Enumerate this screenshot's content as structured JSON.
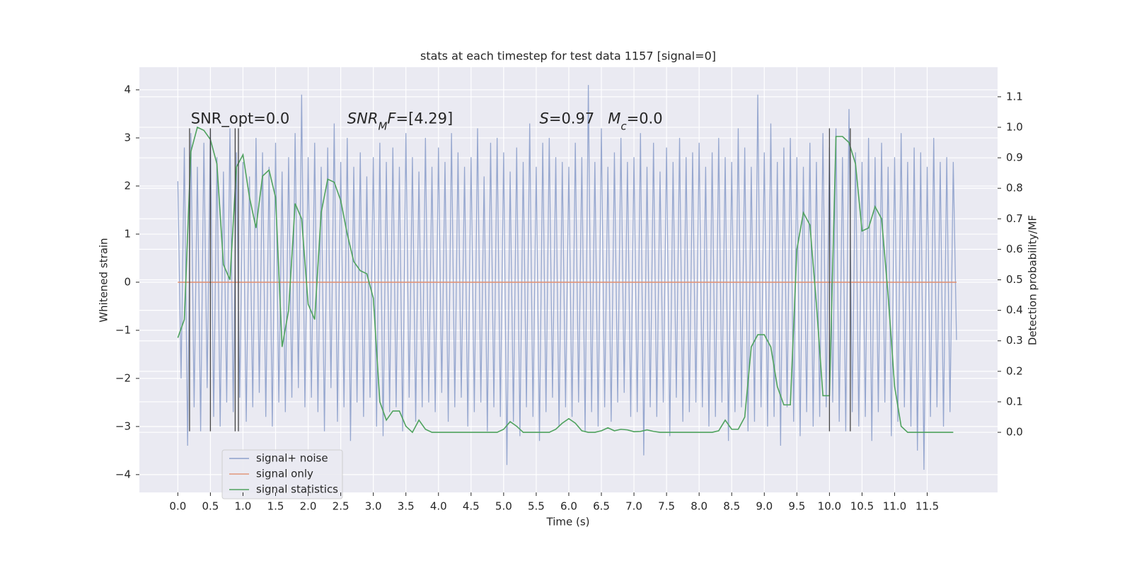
{
  "chart_data": {
    "type": "line",
    "title": "stats at each timestep for test data 1157 [signal=0]",
    "xlabel": "Time (s)",
    "ylabel": "Whitened strain",
    "y2label": "Detection probability/MF",
    "xlim": [
      -0.59,
      12.58
    ],
    "ylim": [
      -4.37,
      4.47
    ],
    "y2lim": [
      -0.197,
      1.197
    ],
    "xticks": [
      {
        "value": 0,
        "label": "0.0"
      },
      {
        "value": 0.5,
        "label": "0.5"
      },
      {
        "value": 1,
        "label": "1.0"
      },
      {
        "value": 1.5,
        "label": "1.5"
      },
      {
        "value": 2,
        "label": "2.0"
      },
      {
        "value": 2.5,
        "label": "2.5"
      },
      {
        "value": 3,
        "label": "3.0"
      },
      {
        "value": 3.5,
        "label": "3.5"
      },
      {
        "value": 4,
        "label": "4.0"
      },
      {
        "value": 4.5,
        "label": "4.5"
      },
      {
        "value": 5,
        "label": "5.0"
      },
      {
        "value": 5.5,
        "label": "5.5"
      },
      {
        "value": 6,
        "label": "6.0"
      },
      {
        "value": 6.5,
        "label": "6.5"
      },
      {
        "value": 7,
        "label": "7.0"
      },
      {
        "value": 7.5,
        "label": "7.5"
      },
      {
        "value": 8,
        "label": "8.0"
      },
      {
        "value": 8.5,
        "label": "8.5"
      },
      {
        "value": 9,
        "label": "9.0"
      },
      {
        "value": 9.5,
        "label": "9.5"
      },
      {
        "value": 10,
        "label": "10.0"
      },
      {
        "value": 10.5,
        "label": "10.5"
      },
      {
        "value": 11,
        "label": "11.0"
      },
      {
        "value": 11.5,
        "label": "11.5"
      }
    ],
    "yticks": [
      {
        "value": -4,
        "label": "−4"
      },
      {
        "value": -3,
        "label": "−3"
      },
      {
        "value": -2,
        "label": "−2"
      },
      {
        "value": -1,
        "label": "−1"
      },
      0,
      1,
      2,
      3,
      4
    ],
    "y2ticks": [
      {
        "value": 0,
        "label": "0.0"
      },
      {
        "value": 0.1,
        "label": "0.1"
      },
      {
        "value": 0.2,
        "label": "0.2"
      },
      {
        "value": 0.3,
        "label": "0.3"
      },
      {
        "value": 0.4,
        "label": "0.4"
      },
      {
        "value": 0.5,
        "label": "0.5"
      },
      {
        "value": 0.6,
        "label": "0.6"
      },
      {
        "value": 0.7,
        "label": "0.7"
      },
      {
        "value": 0.8,
        "label": "0.8"
      },
      {
        "value": 0.9,
        "label": "0.9"
      },
      {
        "value": 1,
        "label": "1.0"
      },
      {
        "value": 1.1,
        "label": "1.1"
      }
    ],
    "grid": true,
    "legend": "lower left",
    "series": [
      {
        "name": "signal+ noise",
        "color": "#8da0cb",
        "x": [
          0,
          0.05,
          0.1,
          0.15,
          0.2,
          0.25,
          0.3,
          0.35,
          0.4,
          0.45,
          0.5,
          0.55,
          0.6,
          0.65,
          0.7,
          0.75,
          0.8,
          0.85,
          0.9,
          0.95,
          1,
          1.05,
          1.1,
          1.15,
          1.2,
          1.25,
          1.3,
          1.35,
          1.4,
          1.45,
          1.5,
          1.55,
          1.6,
          1.65,
          1.7,
          1.75,
          1.8,
          1.85,
          1.9,
          1.95,
          2,
          2.05,
          2.1,
          2.15,
          2.2,
          2.25,
          2.3,
          2.35,
          2.4,
          2.45,
          2.5,
          2.55,
          2.6,
          2.65,
          2.7,
          2.75,
          2.8,
          2.85,
          2.9,
          2.95,
          3,
          3.05,
          3.1,
          3.15,
          3.2,
          3.25,
          3.3,
          3.35,
          3.4,
          3.45,
          3.5,
          3.55,
          3.6,
          3.65,
          3.7,
          3.75,
          3.8,
          3.85,
          3.9,
          3.95,
          4,
          4.05,
          4.1,
          4.15,
          4.2,
          4.25,
          4.3,
          4.35,
          4.4,
          4.45,
          4.5,
          4.55,
          4.6,
          4.65,
          4.7,
          4.75,
          4.8,
          4.85,
          4.9,
          4.95,
          5,
          5.05,
          5.1,
          5.15,
          5.2,
          5.25,
          5.3,
          5.35,
          5.4,
          5.45,
          5.5,
          5.55,
          5.6,
          5.65,
          5.7,
          5.75,
          5.8,
          5.85,
          5.9,
          5.95,
          6,
          6.05,
          6.1,
          6.15,
          6.2,
          6.25,
          6.3,
          6.35,
          6.4,
          6.45,
          6.5,
          6.55,
          6.6,
          6.65,
          6.7,
          6.75,
          6.8,
          6.85,
          6.9,
          6.95,
          7,
          7.05,
          7.1,
          7.15,
          7.2,
          7.25,
          7.3,
          7.35,
          7.4,
          7.45,
          7.5,
          7.55,
          7.6,
          7.65,
          7.7,
          7.75,
          7.8,
          7.85,
          7.9,
          7.95,
          8,
          8.05,
          8.1,
          8.15,
          8.2,
          8.25,
          8.3,
          8.35,
          8.4,
          8.45,
          8.5,
          8.55,
          8.6,
          8.65,
          8.7,
          8.75,
          8.8,
          8.85,
          8.9,
          8.95,
          9,
          9.05,
          9.1,
          9.15,
          9.2,
          9.25,
          9.3,
          9.35,
          9.4,
          9.45,
          9.5,
          9.55,
          9.6,
          9.65,
          9.7,
          9.75,
          9.8,
          9.85,
          9.9,
          9.95,
          10,
          10.05,
          10.1,
          10.15,
          10.2,
          10.25,
          10.3,
          10.35,
          10.4,
          10.45,
          10.5,
          10.55,
          10.6,
          10.65,
          10.7,
          10.75,
          10.8,
          10.85,
          10.9,
          10.95,
          11,
          11.05,
          11.1,
          11.15,
          11.2,
          11.25,
          11.3,
          11.35,
          11.4,
          11.45,
          11.5,
          11.55,
          11.6,
          11.65,
          11.7,
          11.75,
          11.8,
          11.85,
          11.9,
          11.95
        ],
        "values": [
          2.1,
          -2.0,
          2.8,
          -3.4,
          3.1,
          -2.6,
          2.4,
          -3.1,
          2.9,
          -2.2,
          3.2,
          -2.8,
          2.6,
          -3.0,
          2.3,
          -2.5,
          3.2,
          -2.7,
          2.7,
          -2.4,
          2.5,
          -2.9,
          2.2,
          -2.6,
          3.0,
          -2.3,
          2.7,
          -2.8,
          2.4,
          -3.0,
          2.9,
          -2.5,
          2.3,
          -2.7,
          2.6,
          -2.4,
          3.1,
          -2.2,
          3.9,
          -2.6,
          2.6,
          -2.4,
          2.9,
          -2.7,
          2.4,
          -3.1,
          2.8,
          -2.2,
          3.3,
          -2.9,
          2.5,
          -2.6,
          3.0,
          -3.3,
          2.4,
          -2.5,
          2.7,
          -2.8,
          2.2,
          -2.4,
          2.6,
          -3.0,
          2.9,
          -3.2,
          2.5,
          -2.7,
          2.8,
          -2.6,
          2.4,
          -3.1,
          3.1,
          -2.4,
          2.6,
          -2.9,
          2.3,
          -2.6,
          3.0,
          -2.5,
          2.4,
          -2.7,
          2.8,
          -2.3,
          2.5,
          -2.9,
          3.1,
          -2.6,
          2.7,
          -2.4,
          2.4,
          -3.0,
          2.6,
          -2.7,
          3.2,
          -2.5,
          2.2,
          -3.1,
          2.9,
          -2.6,
          3.0,
          -2.8,
          2.7,
          -3.8,
          2.3,
          -2.9,
          2.8,
          -3.2,
          2.5,
          -2.6,
          3.3,
          -2.8,
          2.4,
          -3.3,
          2.9,
          -2.7,
          3.0,
          -2.4,
          2.6,
          -3.0,
          2.5,
          -2.6,
          2.4,
          -2.8,
          2.9,
          -2.5,
          2.6,
          -3.1,
          4.1,
          -2.7,
          2.5,
          -3.0,
          3.2,
          -2.6,
          2.4,
          -2.9,
          2.7,
          -2.5,
          3.0,
          -2.3,
          2.5,
          -2.8,
          2.6,
          -2.7,
          3.1,
          -3.6,
          2.4,
          -2.6,
          2.9,
          -2.8,
          2.3,
          -2.5,
          2.8,
          -3.2,
          2.5,
          -2.4,
          3.0,
          -2.9,
          2.6,
          -2.7,
          2.7,
          -2.5,
          2.9,
          -2.6,
          2.4,
          -3.0,
          2.7,
          -2.8,
          3.0,
          -2.5,
          2.6,
          -3.3,
          2.5,
          -2.7,
          3.2,
          -2.6,
          2.8,
          -3.1,
          2.4,
          -2.9,
          3.9,
          -2.6,
          2.7,
          -3.0,
          3.3,
          -2.8,
          2.5,
          -3.4,
          2.8,
          -2.6,
          3.0,
          -2.9,
          2.6,
          -3.2,
          2.4,
          -2.7,
          2.9,
          -3.0,
          2.5,
          -2.8,
          3.1,
          -2.6,
          2.8,
          -2.5,
          3.2,
          -2.9,
          2.6,
          -3.1,
          3.6,
          -2.7,
          2.7,
          -3.0,
          2.5,
          -2.8,
          3.0,
          -3.3,
          2.6,
          -2.7,
          2.9,
          -2.5,
          2.4,
          -3.2,
          2.6,
          -2.9,
          3.1,
          -2.6,
          2.5,
          -3.0,
          2.8,
          -3.5,
          2.7,
          -3.9,
          2.4,
          -2.8,
          3.0,
          -2.6,
          2.5,
          -3.0,
          2.6,
          -2.7,
          2.5,
          -1.2
        ]
      },
      {
        "name": "signal only",
        "color": "#e1967a",
        "x": [
          0,
          11.95
        ],
        "values": [
          0,
          0
        ]
      },
      {
        "name": "signal statistics",
        "color": "#4fa25e",
        "axis": "y2",
        "x": [
          0,
          0.1,
          0.2,
          0.3,
          0.4,
          0.5,
          0.6,
          0.7,
          0.8,
          0.9,
          1,
          1.1,
          1.2,
          1.3,
          1.4,
          1.5,
          1.6,
          1.7,
          1.8,
          1.9,
          2,
          2.1,
          2.2,
          2.3,
          2.4,
          2.5,
          2.6,
          2.7,
          2.8,
          2.9,
          3,
          3.1,
          3.2,
          3.3,
          3.4,
          3.5,
          3.6,
          3.7,
          3.8,
          3.9,
          4,
          4.1,
          4.2,
          4.3,
          4.4,
          4.5,
          4.6,
          4.7,
          4.8,
          4.9,
          5,
          5.1,
          5.2,
          5.3,
          5.4,
          5.5,
          5.6,
          5.7,
          5.8,
          5.9,
          6,
          6.1,
          6.2,
          6.3,
          6.4,
          6.5,
          6.6,
          6.7,
          6.8,
          6.9,
          7,
          7.1,
          7.2,
          7.3,
          7.4,
          7.5,
          7.6,
          7.7,
          7.8,
          7.9,
          8,
          8.1,
          8.2,
          8.3,
          8.4,
          8.5,
          8.6,
          8.7,
          8.8,
          8.9,
          9,
          9.1,
          9.2,
          9.3,
          9.4,
          9.5,
          9.6,
          9.7,
          9.8,
          9.9,
          10,
          10.1,
          10.2,
          10.3,
          10.4,
          10.5,
          10.6,
          10.7,
          10.8,
          10.9,
          11,
          11.1,
          11.2,
          11.3,
          11.4,
          11.5,
          11.6,
          11.7,
          11.8,
          11.9
        ],
        "values": [
          0.31,
          0.37,
          0.92,
          1.0,
          0.99,
          0.96,
          0.88,
          0.55,
          0.5,
          0.87,
          0.91,
          0.77,
          0.67,
          0.84,
          0.86,
          0.77,
          0.28,
          0.4,
          0.75,
          0.7,
          0.42,
          0.37,
          0.72,
          0.83,
          0.82,
          0.76,
          0.65,
          0.56,
          0.53,
          0.52,
          0.44,
          0.1,
          0.04,
          0.07,
          0.07,
          0.02,
          0.0,
          0.04,
          0.01,
          0.0,
          0.0,
          0,
          0,
          0,
          0,
          0,
          0,
          0,
          0,
          0,
          0.01,
          0.035,
          0.02,
          0,
          0,
          0,
          0,
          0,
          0.01,
          0.03,
          0.045,
          0.03,
          0.005,
          0,
          0,
          0.005,
          0.015,
          0.005,
          0.01,
          0.008,
          0.002,
          0.003,
          0.008,
          0.003,
          0,
          0,
          0,
          0,
          0,
          0,
          0,
          0,
          0,
          0.005,
          0.04,
          0.01,
          0.01,
          0.05,
          0.28,
          0.32,
          0.32,
          0.28,
          0.15,
          0.09,
          0.09,
          0.6,
          0.72,
          0.68,
          0.42,
          0.12,
          0.12,
          0.97,
          0.97,
          0.95,
          0.88,
          0.66,
          0.67,
          0.74,
          0.7,
          0.45,
          0.15,
          0.02,
          0,
          0,
          0,
          0,
          0,
          0,
          0,
          0
        ]
      }
    ],
    "vlines": {
      "x": [
        0.18,
        0.5,
        0.88,
        0.93,
        10.0,
        10.32
      ],
      "ymin": -3.1,
      "ymax": 3.2,
      "color": "#444444"
    },
    "annotations": [
      {
        "x": 0.2,
        "y": 3.3,
        "parts": [
          {
            "text": "SNR_opt=0.0"
          }
        ]
      },
      {
        "x": 2.6,
        "y": 3.3,
        "parts": [
          {
            "text": "SNR",
            "italic": true
          },
          {
            "text": "M",
            "italic": true,
            "sub": true
          },
          {
            "text": "F",
            "italic": true
          },
          {
            "text": "=[4.29]"
          }
        ]
      },
      {
        "x": 5.55,
        "y": 3.3,
        "parts": [
          {
            "text": "S",
            "italic": true
          },
          {
            "text": "=0.97"
          }
        ]
      },
      {
        "x": 6.6,
        "y": 3.3,
        "parts": [
          {
            "text": "M",
            "italic": true
          },
          {
            "text": "c",
            "italic": true,
            "sub": true
          },
          {
            "text": "=0.0"
          }
        ]
      }
    ]
  }
}
